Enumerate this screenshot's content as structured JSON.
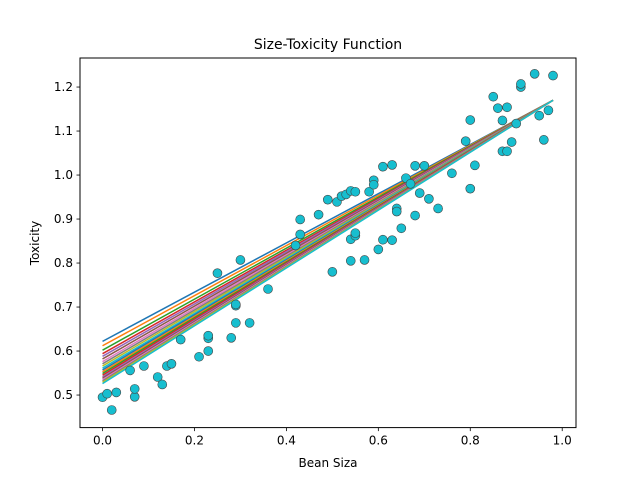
{
  "chart_data": {
    "type": "scatter",
    "title": "Size-Toxicity Function",
    "xlabel": "Bean Siza",
    "ylabel": "Toxicity",
    "xlim": [
      -0.049,
      1.03
    ],
    "ylim": [
      0.426,
      1.266
    ],
    "x_ticks": [
      0.0,
      0.2,
      0.4,
      0.6,
      0.8,
      1.0
    ],
    "x_tick_labels": [
      "0.0",
      "0.2",
      "0.4",
      "0.6",
      "0.8",
      "1.0"
    ],
    "y_ticks": [
      0.5,
      0.6,
      0.7,
      0.8,
      0.9,
      1.0,
      1.1,
      1.2
    ],
    "y_tick_labels": [
      "0.5",
      "0.6",
      "0.7",
      "0.8",
      "0.9",
      "1.0",
      "1.1",
      "1.2"
    ],
    "grid": false,
    "marker_color": "#17becf",
    "marker_edge_color": "#444444",
    "line_colors": [
      "#1f77b4",
      "#ff7f0e",
      "#2ca02c",
      "#d62728",
      "#9467bd",
      "#8c564b",
      "#e377c2",
      "#7f7f7f",
      "#bcbd22",
      "#17becf"
    ],
    "points": [
      {
        "x": 0.0,
        "y": 0.495
      },
      {
        "x": 0.01,
        "y": 0.503
      },
      {
        "x": 0.02,
        "y": 0.466
      },
      {
        "x": 0.03,
        "y": 0.506
      },
      {
        "x": 0.06,
        "y": 0.556
      },
      {
        "x": 0.07,
        "y": 0.496
      },
      {
        "x": 0.07,
        "y": 0.514
      },
      {
        "x": 0.09,
        "y": 0.566
      },
      {
        "x": 0.12,
        "y": 0.541
      },
      {
        "x": 0.13,
        "y": 0.524
      },
      {
        "x": 0.14,
        "y": 0.566
      },
      {
        "x": 0.15,
        "y": 0.571
      },
      {
        "x": 0.17,
        "y": 0.626
      },
      {
        "x": 0.21,
        "y": 0.587
      },
      {
        "x": 0.23,
        "y": 0.6
      },
      {
        "x": 0.23,
        "y": 0.629
      },
      {
        "x": 0.23,
        "y": 0.635
      },
      {
        "x": 0.25,
        "y": 0.777
      },
      {
        "x": 0.28,
        "y": 0.63
      },
      {
        "x": 0.29,
        "y": 0.703
      },
      {
        "x": 0.29,
        "y": 0.706
      },
      {
        "x": 0.29,
        "y": 0.664
      },
      {
        "x": 0.3,
        "y": 0.807
      },
      {
        "x": 0.32,
        "y": 0.664
      },
      {
        "x": 0.36,
        "y": 0.741
      },
      {
        "x": 0.42,
        "y": 0.84
      },
      {
        "x": 0.43,
        "y": 0.899
      },
      {
        "x": 0.43,
        "y": 0.865
      },
      {
        "x": 0.47,
        "y": 0.91
      },
      {
        "x": 0.49,
        "y": 0.944
      },
      {
        "x": 0.5,
        "y": 0.78
      },
      {
        "x": 0.51,
        "y": 0.939
      },
      {
        "x": 0.52,
        "y": 0.952
      },
      {
        "x": 0.53,
        "y": 0.956
      },
      {
        "x": 0.54,
        "y": 0.964
      },
      {
        "x": 0.54,
        "y": 0.854
      },
      {
        "x": 0.54,
        "y": 0.805
      },
      {
        "x": 0.55,
        "y": 0.862
      },
      {
        "x": 0.55,
        "y": 0.868
      },
      {
        "x": 0.55,
        "y": 0.962
      },
      {
        "x": 0.57,
        "y": 0.807
      },
      {
        "x": 0.58,
        "y": 0.962
      },
      {
        "x": 0.59,
        "y": 0.988
      },
      {
        "x": 0.59,
        "y": 0.978
      },
      {
        "x": 0.6,
        "y": 0.831
      },
      {
        "x": 0.61,
        "y": 1.019
      },
      {
        "x": 0.61,
        "y": 0.853
      },
      {
        "x": 0.63,
        "y": 0.852
      },
      {
        "x": 0.63,
        "y": 1.023
      },
      {
        "x": 0.64,
        "y": 0.924
      },
      {
        "x": 0.64,
        "y": 0.917
      },
      {
        "x": 0.65,
        "y": 0.879
      },
      {
        "x": 0.66,
        "y": 0.993
      },
      {
        "x": 0.67,
        "y": 0.98
      },
      {
        "x": 0.68,
        "y": 1.021
      },
      {
        "x": 0.68,
        "y": 0.908
      },
      {
        "x": 0.69,
        "y": 0.959
      },
      {
        "x": 0.7,
        "y": 1.021
      },
      {
        "x": 0.71,
        "y": 0.946
      },
      {
        "x": 0.73,
        "y": 0.924
      },
      {
        "x": 0.76,
        "y": 1.004
      },
      {
        "x": 0.79,
        "y": 1.077
      },
      {
        "x": 0.8,
        "y": 0.969
      },
      {
        "x": 0.8,
        "y": 1.125
      },
      {
        "x": 0.81,
        "y": 1.022
      },
      {
        "x": 0.85,
        "y": 1.178
      },
      {
        "x": 0.86,
        "y": 1.152
      },
      {
        "x": 0.87,
        "y": 1.124
      },
      {
        "x": 0.87,
        "y": 1.054
      },
      {
        "x": 0.88,
        "y": 1.054
      },
      {
        "x": 0.88,
        "y": 1.154
      },
      {
        "x": 0.89,
        "y": 1.075
      },
      {
        "x": 0.9,
        "y": 1.117
      },
      {
        "x": 0.91,
        "y": 1.2
      },
      {
        "x": 0.91,
        "y": 1.207
      },
      {
        "x": 0.94,
        "y": 1.23
      },
      {
        "x": 0.95,
        "y": 1.135
      },
      {
        "x": 0.96,
        "y": 1.08
      },
      {
        "x": 0.97,
        "y": 1.147
      },
      {
        "x": 0.98,
        "y": 1.226
      }
    ],
    "fit_lines": [
      {
        "x": [
          0.0,
          0.98
        ],
        "y": [
          0.622,
          1.17
        ]
      },
      {
        "x": [
          0.0,
          0.98
        ],
        "y": [
          0.612,
          1.17
        ]
      },
      {
        "x": [
          0.0,
          0.98
        ],
        "y": [
          0.602,
          1.17
        ]
      },
      {
        "x": [
          0.0,
          0.98
        ],
        "y": [
          0.594,
          1.17
        ]
      },
      {
        "x": [
          0.0,
          0.98
        ],
        "y": [
          0.588,
          1.17
        ]
      },
      {
        "x": [
          0.0,
          0.98
        ],
        "y": [
          0.582,
          1.17
        ]
      },
      {
        "x": [
          0.0,
          0.98
        ],
        "y": [
          0.576,
          1.17
        ]
      },
      {
        "x": [
          0.0,
          0.98
        ],
        "y": [
          0.571,
          1.17
        ]
      },
      {
        "x": [
          0.0,
          0.98
        ],
        "y": [
          0.566,
          1.17
        ]
      },
      {
        "x": [
          0.0,
          0.98
        ],
        "y": [
          0.561,
          1.17
        ]
      },
      {
        "x": [
          0.0,
          0.98
        ],
        "y": [
          0.557,
          1.17
        ]
      },
      {
        "x": [
          0.0,
          0.98
        ],
        "y": [
          0.553,
          1.17
        ]
      },
      {
        "x": [
          0.0,
          0.98
        ],
        "y": [
          0.549,
          1.17
        ]
      },
      {
        "x": [
          0.0,
          0.98
        ],
        "y": [
          0.545,
          1.17
        ]
      },
      {
        "x": [
          0.0,
          0.98
        ],
        "y": [
          0.541,
          1.17
        ]
      },
      {
        "x": [
          0.0,
          0.98
        ],
        "y": [
          0.538,
          1.17
        ]
      },
      {
        "x": [
          0.0,
          0.98
        ],
        "y": [
          0.535,
          1.17
        ]
      },
      {
        "x": [
          0.0,
          0.98
        ],
        "y": [
          0.532,
          1.17
        ]
      },
      {
        "x": [
          0.0,
          0.98
        ],
        "y": [
          0.529,
          1.17
        ]
      },
      {
        "x": [
          0.0,
          0.98
        ],
        "y": [
          0.526,
          1.17
        ]
      }
    ]
  }
}
